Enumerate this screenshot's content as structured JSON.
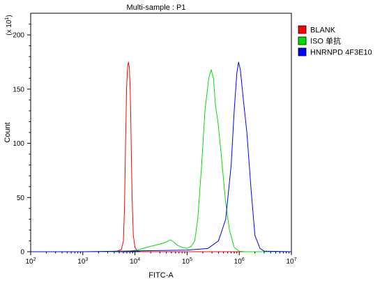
{
  "chart_data": {
    "type": "line",
    "title": "Multi-sample : P1",
    "xlabel": "FITC-A",
    "ylabel": "Count",
    "y_multiplier_base": "(x 10",
    "y_multiplier_exp": "1",
    "y_multiplier_close": ")",
    "x_scale": "log",
    "xlim": [
      100,
      10000000
    ],
    "ylim": [
      0,
      220
    ],
    "x_ticks": [
      {
        "value": 100,
        "base": "10",
        "exp": "2"
      },
      {
        "value": 1000,
        "base": "10",
        "exp": "3"
      },
      {
        "value": 10000,
        "base": "10",
        "exp": "4"
      },
      {
        "value": 100000,
        "base": "10",
        "exp": "5"
      },
      {
        "value": 1000000,
        "base": "10",
        "exp": "6"
      },
      {
        "value": 10000000,
        "base": "10",
        "exp": "7"
      }
    ],
    "y_ticks": [
      0,
      50,
      100,
      150,
      200
    ],
    "legend_position": "right",
    "series": [
      {
        "name": "BLANK",
        "color": "#ff0000",
        "points": [
          [
            100,
            0
          ],
          [
            3000,
            0
          ],
          [
            4500,
            0.5
          ],
          [
            5500,
            2
          ],
          [
            6000,
            10
          ],
          [
            6300,
            40
          ],
          [
            6600,
            100
          ],
          [
            6900,
            150
          ],
          [
            7200,
            170
          ],
          [
            7500,
            175
          ],
          [
            7800,
            170
          ],
          [
            8100,
            150
          ],
          [
            8400,
            110
          ],
          [
            8800,
            50
          ],
          [
            9300,
            15
          ],
          [
            10000,
            4
          ],
          [
            11000,
            1
          ],
          [
            13000,
            0
          ],
          [
            10000000,
            0
          ]
        ]
      },
      {
        "name": "ISO 单抗",
        "color": "#00e000",
        "points": [
          [
            100,
            0
          ],
          [
            3000,
            0
          ],
          [
            8000,
            0.5
          ],
          [
            12000,
            2
          ],
          [
            20000,
            5
          ],
          [
            30000,
            7
          ],
          [
            40000,
            9
          ],
          [
            48000,
            11
          ],
          [
            55000,
            9
          ],
          [
            65000,
            6
          ],
          [
            80000,
            4
          ],
          [
            100000,
            3
          ],
          [
            120000,
            5
          ],
          [
            140000,
            10
          ],
          [
            160000,
            30
          ],
          [
            190000,
            80
          ],
          [
            220000,
            130
          ],
          [
            260000,
            160
          ],
          [
            290000,
            168
          ],
          [
            320000,
            160
          ],
          [
            350000,
            135
          ],
          [
            390000,
            120
          ],
          [
            450000,
            90
          ],
          [
            550000,
            45
          ],
          [
            650000,
            20
          ],
          [
            800000,
            4
          ],
          [
            1000000,
            0.5
          ],
          [
            1300000,
            0
          ],
          [
            10000000,
            0
          ]
        ]
      },
      {
        "name": "HNRNPD 4F3E10",
        "color": "#0000ff",
        "points": [
          [
            100,
            0
          ],
          [
            1000,
            0
          ],
          [
            5000,
            0.5
          ],
          [
            20000,
            1
          ],
          [
            100000,
            1.5
          ],
          [
            250000,
            3
          ],
          [
            400000,
            10
          ],
          [
            550000,
            30
          ],
          [
            700000,
            80
          ],
          [
            800000,
            130
          ],
          [
            900000,
            165
          ],
          [
            970000,
            175
          ],
          [
            1050000,
            168
          ],
          [
            1200000,
            140
          ],
          [
            1400000,
            110
          ],
          [
            1700000,
            55
          ],
          [
            2000000,
            15
          ],
          [
            2500000,
            3
          ],
          [
            3000000,
            0.5
          ],
          [
            10000000,
            0
          ]
        ]
      }
    ]
  }
}
